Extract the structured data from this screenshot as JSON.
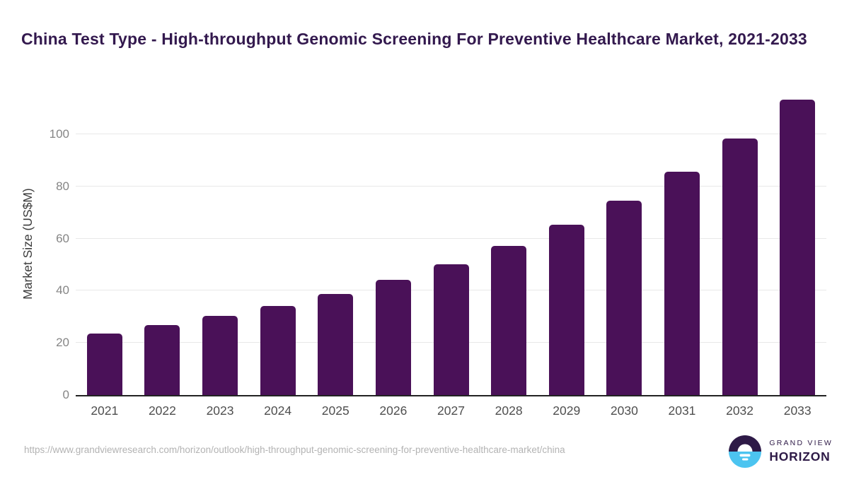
{
  "header": {
    "title": "China Test Type - High-throughput Genomic Screening For Preventive Healthcare Market, 2021-2033"
  },
  "chart_data": {
    "type": "bar",
    "title": "China Test Type - High-throughput Genomic Screening For Preventive Healthcare Market, 2021-2033",
    "categories": [
      "2021",
      "2022",
      "2023",
      "2024",
      "2025",
      "2026",
      "2027",
      "2028",
      "2029",
      "2030",
      "2031",
      "2032",
      "2033"
    ],
    "values": [
      23.7,
      26.8,
      30.4,
      34.2,
      38.8,
      44.2,
      50.1,
      57.2,
      65.4,
      74.6,
      85.6,
      98.4,
      113.3
    ],
    "xlabel": "",
    "ylabel": "Market Size (US$M)",
    "ylim": [
      0,
      116
    ],
    "yticks": [
      0,
      20,
      40,
      60,
      80,
      100
    ],
    "grid": "horizontal",
    "legend": "none",
    "bar_color": "#4a1158"
  },
  "footer": {
    "source_url": "https://www.grandviewresearch.com/horizon/outlook/high-throughput-genomic-screening-for-preventive-healthcare-market/china",
    "logo": {
      "top_text": "GRAND VIEW",
      "bottom_text": "HORIZON"
    }
  },
  "colors": {
    "title": "#33194e",
    "bar": "#4a1158",
    "axis_line": "#222222",
    "gridline": "#e8e8e8",
    "y_tick": "#858585",
    "x_tick": "#4f4f4f",
    "url": "#b3b3b3",
    "logo_purple": "#2e1a47",
    "logo_blue": "#4cc4f0"
  }
}
